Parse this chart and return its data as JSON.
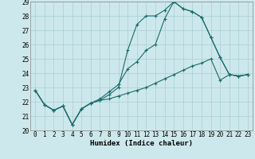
{
  "xlabel": "Humidex (Indice chaleur)",
  "xlim": [
    -0.5,
    23.5
  ],
  "ylim": [
    20,
    29
  ],
  "yticks": [
    20,
    21,
    22,
    23,
    24,
    25,
    26,
    27,
    28,
    29
  ],
  "xticks": [
    0,
    1,
    2,
    3,
    4,
    5,
    6,
    7,
    8,
    9,
    10,
    11,
    12,
    13,
    14,
    15,
    16,
    17,
    18,
    19,
    20,
    21,
    22,
    23
  ],
  "background_color": "#cde8ec",
  "grid_color": "#a8cdd4",
  "line_color": "#1a6b6b",
  "series": {
    "line1_x": [
      0,
      1,
      2,
      3,
      4,
      5,
      6,
      7,
      8,
      9,
      10,
      11,
      12,
      13,
      14,
      15,
      16,
      17,
      18,
      19,
      20,
      21,
      22,
      23
    ],
    "line1_y": [
      22.8,
      21.8,
      21.4,
      21.7,
      20.4,
      21.5,
      21.9,
      22.1,
      22.5,
      23.0,
      25.6,
      27.4,
      28.0,
      28.0,
      28.4,
      29.0,
      28.5,
      28.3,
      27.9,
      26.5,
      25.1,
      23.9,
      23.8,
      23.9
    ],
    "line2_x": [
      0,
      1,
      2,
      3,
      4,
      5,
      6,
      7,
      8,
      9,
      10,
      11,
      12,
      13,
      14,
      15,
      16,
      17,
      18,
      19,
      20,
      21,
      22,
      23
    ],
    "line2_y": [
      22.8,
      21.8,
      21.4,
      21.7,
      20.4,
      21.5,
      21.9,
      22.2,
      22.7,
      23.2,
      24.3,
      24.8,
      25.6,
      26.0,
      27.8,
      29.0,
      28.5,
      28.3,
      27.9,
      26.5,
      25.1,
      23.9,
      23.8,
      23.9
    ],
    "line3_x": [
      0,
      1,
      2,
      3,
      4,
      5,
      6,
      7,
      8,
      9,
      10,
      11,
      12,
      13,
      14,
      15,
      16,
      17,
      18,
      19,
      20,
      21,
      22,
      23
    ],
    "line3_y": [
      22.8,
      21.8,
      21.4,
      21.7,
      20.4,
      21.5,
      21.9,
      22.1,
      22.2,
      22.4,
      22.6,
      22.8,
      23.0,
      23.3,
      23.6,
      23.9,
      24.2,
      24.5,
      24.7,
      25.0,
      23.5,
      23.9,
      23.8,
      23.9
    ]
  }
}
